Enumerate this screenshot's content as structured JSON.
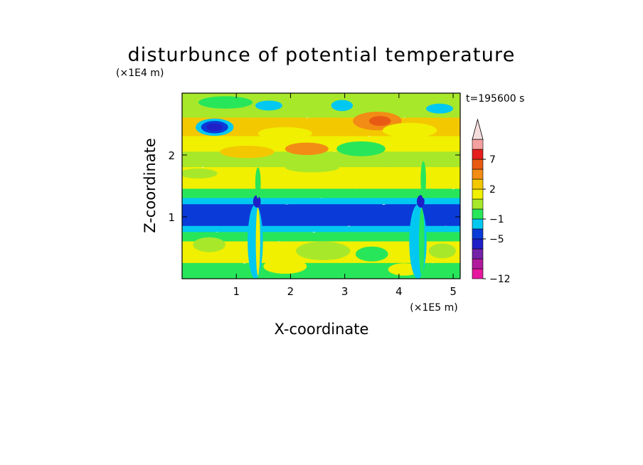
{
  "chart_data": {
    "type": "heatmap",
    "title": "disturbunce of potential temperature",
    "xlabel": "X-coordinate",
    "ylabel": "Z-coordinate",
    "x_unit": "(×1E5 m)",
    "y_unit": "(×1E4 m)",
    "time_label": "t=195600 s",
    "xlim": [
      0,
      5.13
    ],
    "ylim": [
      0,
      3.0
    ],
    "x_ticks": [
      1,
      2,
      3,
      4,
      5
    ],
    "y_ticks": [
      1,
      2
    ],
    "colorbar": {
      "levels": [
        -12,
        -11,
        -9,
        -7,
        -5,
        -3,
        -1,
        0,
        1,
        2,
        4,
        5,
        7,
        9,
        11
      ],
      "colors": [
        "#e6199e",
        "#b01b9c",
        "#7422a8",
        "#1f1fc8",
        "#0a3ad8",
        "#00c8f0",
        "#28e65a",
        "#a8e82a",
        "#f0f000",
        "#f4c800",
        "#f28c14",
        "#e85a14",
        "#e61e1e",
        "#f5a0a0"
      ],
      "labels": [
        {
          "value": -12,
          "text": "−12"
        },
        {
          "value": -5,
          "text": "−5"
        },
        {
          "value": -1,
          "text": "−1"
        },
        {
          "value": 2,
          "text": "2"
        },
        {
          "value": 7,
          "text": "7"
        }
      ],
      "extend_max": true,
      "extend_color": "#f5dcdc"
    },
    "bands": [
      {
        "z0": 0.0,
        "z1": 0.3,
        "color": "#28e65a"
      },
      {
        "z0": 0.3,
        "z1": 0.65,
        "color": "#f0f000"
      },
      {
        "z0": 0.65,
        "z1": 0.8,
        "color": "#28e65a"
      },
      {
        "z0": 0.8,
        "z1": 0.9,
        "color": "#00c8f0"
      },
      {
        "z0": 0.9,
        "z1": 1.25,
        "color": "#0a3ad8"
      },
      {
        "z0": 1.25,
        "z1": 1.35,
        "color": "#00c8f0"
      },
      {
        "z0": 1.35,
        "z1": 1.5,
        "color": "#28e65a"
      },
      {
        "z0": 1.5,
        "z1": 1.85,
        "color": "#f0f000"
      },
      {
        "z0": 1.85,
        "z1": 2.1,
        "color": "#a8e82a"
      },
      {
        "z0": 2.1,
        "z1": 2.35,
        "color": "#f0f000"
      },
      {
        "z0": 2.35,
        "z1": 2.65,
        "color": "#f4c800"
      },
      {
        "z0": 2.65,
        "z1": 3.0,
        "color": "#a8e82a"
      }
    ],
    "blobs": [
      {
        "x": 0.6,
        "z": 2.45,
        "rx": 0.35,
        "rz": 0.14,
        "color": "#00c8f0"
      },
      {
        "x": 0.6,
        "z": 2.45,
        "rx": 0.25,
        "rz": 0.1,
        "color": "#0a3ad8"
      },
      {
        "x": 0.6,
        "z": 2.45,
        "rx": 0.15,
        "rz": 0.06,
        "color": "#1f1fc8"
      },
      {
        "x": 3.6,
        "z": 2.55,
        "rx": 0.45,
        "rz": 0.15,
        "color": "#f28c14"
      },
      {
        "x": 3.65,
        "z": 2.55,
        "rx": 0.2,
        "rz": 0.08,
        "color": "#e85a14"
      },
      {
        "x": 1.2,
        "z": 2.05,
        "rx": 0.5,
        "rz": 0.1,
        "color": "#f4c800"
      },
      {
        "x": 2.3,
        "z": 2.1,
        "rx": 0.4,
        "rz": 0.1,
        "color": "#f28c14"
      },
      {
        "x": 3.3,
        "z": 2.1,
        "rx": 0.45,
        "rz": 0.12,
        "color": "#28e65a"
      },
      {
        "x": 2.95,
        "z": 2.8,
        "rx": 0.2,
        "rz": 0.09,
        "color": "#00c8f0"
      },
      {
        "x": 1.6,
        "z": 2.8,
        "rx": 0.25,
        "rz": 0.08,
        "color": "#00c8f0"
      },
      {
        "x": 4.75,
        "z": 2.75,
        "rx": 0.25,
        "rz": 0.08,
        "color": "#00c8f0"
      },
      {
        "x": 0.8,
        "z": 2.85,
        "rx": 0.5,
        "rz": 0.1,
        "color": "#28e65a"
      },
      {
        "x": 1.9,
        "z": 2.35,
        "rx": 0.5,
        "rz": 0.1,
        "color": "#f0f000"
      },
      {
        "x": 4.2,
        "z": 2.4,
        "rx": 0.5,
        "rz": 0.12,
        "color": "#f0f000"
      },
      {
        "x": 0.3,
        "z": 1.7,
        "rx": 0.35,
        "rz": 0.08,
        "color": "#a8e82a"
      },
      {
        "x": 2.4,
        "z": 1.8,
        "rx": 0.5,
        "rz": 0.08,
        "color": "#a8e82a"
      },
      {
        "x": 0.5,
        "z": 0.55,
        "rx": 0.3,
        "rz": 0.12,
        "color": "#a8e82a"
      },
      {
        "x": 2.6,
        "z": 0.45,
        "rx": 0.5,
        "rz": 0.15,
        "color": "#a8e82a"
      },
      {
        "x": 3.5,
        "z": 0.4,
        "rx": 0.3,
        "rz": 0.12,
        "color": "#28e65a"
      },
      {
        "x": 4.8,
        "z": 0.45,
        "rx": 0.25,
        "rz": 0.12,
        "color": "#a8e82a"
      },
      {
        "x": 1.9,
        "z": 0.2,
        "rx": 0.4,
        "rz": 0.12,
        "color": "#f0f000"
      },
      {
        "x": 4.1,
        "z": 0.15,
        "rx": 0.3,
        "rz": 0.1,
        "color": "#f0f000"
      },
      {
        "x": 1.35,
        "z": 0.6,
        "rx": 0.14,
        "rz": 0.6,
        "color": "#00c8f0"
      },
      {
        "x": 1.4,
        "z": 0.6,
        "rx": 0.04,
        "rz": 0.55,
        "color": "#f0f000"
      },
      {
        "x": 4.35,
        "z": 0.6,
        "rx": 0.16,
        "rz": 0.6,
        "color": "#00c8f0"
      },
      {
        "x": 4.42,
        "z": 0.6,
        "rx": 0.05,
        "rz": 0.55,
        "color": "#28e65a"
      },
      {
        "x": 1.38,
        "z": 1.25,
        "rx": 0.07,
        "rz": 0.1,
        "color": "#1f1fc8"
      },
      {
        "x": 4.4,
        "z": 1.25,
        "rx": 0.07,
        "rz": 0.1,
        "color": "#1f1fc8"
      },
      {
        "x": 4.45,
        "z": 1.6,
        "rx": 0.05,
        "rz": 0.3,
        "color": "#28e65a"
      },
      {
        "x": 1.4,
        "z": 1.55,
        "rx": 0.05,
        "rz": 0.25,
        "color": "#28e65a"
      }
    ]
  }
}
